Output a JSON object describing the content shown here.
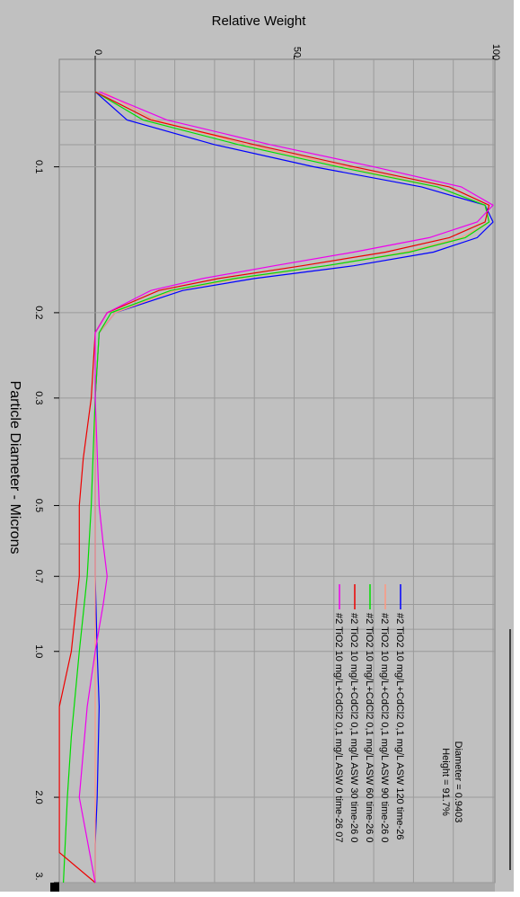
{
  "chart_data": {
    "type": "line",
    "orientation": "rotated-90-clockwise",
    "title": "",
    "xlabel": "Particle Diameter - Microns",
    "ylabel": "Relative Weight",
    "x_scale": "log",
    "xlim": [
      0.06,
      3.0
    ],
    "ylim": [
      0,
      100
    ],
    "grid": true,
    "x_ticks": [
      "0.1",
      "0.2",
      "0.3",
      "0.5",
      "0.7",
      "1.0",
      "2.0",
      "3."
    ],
    "y_ticks": [
      "0",
      "50",
      "100"
    ],
    "legend_position": "lower-right",
    "readout": {
      "diameter": "Diameter = 0.9403",
      "height": "Height = 91.7%"
    },
    "series": [
      {
        "name": "#2 TiO2 10 mg/L+CdCl2 0,1 mg/L ASW 120 time-26",
        "color": "#0000ff",
        "points": [
          [
            0.07,
            0
          ],
          [
            0.08,
            8
          ],
          [
            0.09,
            30
          ],
          [
            0.1,
            55
          ],
          [
            0.11,
            82
          ],
          [
            0.12,
            98
          ],
          [
            0.13,
            100
          ],
          [
            0.14,
            96
          ],
          [
            0.15,
            85
          ],
          [
            0.16,
            65
          ],
          [
            0.17,
            40
          ],
          [
            0.18,
            22
          ],
          [
            0.2,
            5
          ],
          [
            0.22,
            1
          ],
          [
            0.3,
            0
          ],
          [
            0.5,
            0
          ],
          [
            0.7,
            0
          ],
          [
            1.0,
            0.5
          ],
          [
            1.3,
            1
          ],
          [
            2.0,
            0.5
          ],
          [
            2.5,
            0
          ],
          [
            3.0,
            0
          ]
        ]
      },
      {
        "name": "#2 TiO2 10 mg/L+CdCl2 0,1 mg/L ASW 90 time-26 0",
        "color": "#ff9980",
        "points": [
          [
            0.07,
            2
          ],
          [
            0.08,
            15
          ],
          [
            0.09,
            38
          ],
          [
            0.1,
            63
          ],
          [
            0.11,
            86
          ],
          [
            0.12,
            98
          ],
          [
            0.13,
            99
          ],
          [
            0.14,
            92
          ],
          [
            0.15,
            78
          ],
          [
            0.16,
            58
          ],
          [
            0.17,
            36
          ],
          [
            0.18,
            20
          ],
          [
            0.2,
            5
          ],
          [
            0.22,
            1
          ],
          [
            0.3,
            0
          ],
          [
            0.5,
            0
          ],
          [
            0.7,
            0
          ],
          [
            1.0,
            0
          ],
          [
            2.0,
            0
          ],
          [
            3.0,
            0
          ]
        ]
      },
      {
        "name": "#2 TiO2 10 mg/L+CdCl2 0,1 mg/L ASW 60 time-26 0",
        "color": "#00dd00",
        "points": [
          [
            0.07,
            0
          ],
          [
            0.08,
            12
          ],
          [
            0.09,
            36
          ],
          [
            0.1,
            61
          ],
          [
            0.11,
            86
          ],
          [
            0.12,
            98
          ],
          [
            0.13,
            99
          ],
          [
            0.14,
            93
          ],
          [
            0.15,
            79
          ],
          [
            0.16,
            58
          ],
          [
            0.17,
            35
          ],
          [
            0.18,
            19
          ],
          [
            0.2,
            4
          ],
          [
            0.22,
            1
          ],
          [
            0.3,
            0
          ],
          [
            0.5,
            -1
          ],
          [
            0.7,
            -2
          ],
          [
            1.0,
            -4
          ],
          [
            1.5,
            -6
          ],
          [
            2.0,
            -7
          ],
          [
            3.0,
            -8
          ]
        ]
      },
      {
        "name": "#2 TiO2 10 mg/L+CdCl2 0,1 mg/L ASW 30 time-26 0",
        "color": "#ee0000",
        "points": [
          [
            0.07,
            0
          ],
          [
            0.08,
            14
          ],
          [
            0.09,
            40
          ],
          [
            0.1,
            65
          ],
          [
            0.11,
            89
          ],
          [
            0.12,
            99
          ],
          [
            0.13,
            98
          ],
          [
            0.14,
            89
          ],
          [
            0.15,
            73
          ],
          [
            0.16,
            52
          ],
          [
            0.17,
            31
          ],
          [
            0.18,
            16
          ],
          [
            0.2,
            3
          ],
          [
            0.22,
            0
          ],
          [
            0.3,
            -1
          ],
          [
            0.4,
            -3
          ],
          [
            0.5,
            -4
          ],
          [
            0.7,
            -4
          ],
          [
            1.0,
            -6
          ],
          [
            1.3,
            -9
          ],
          [
            2.0,
            -9
          ],
          [
            2.6,
            -9
          ],
          [
            3.0,
            0
          ]
        ]
      },
      {
        "name": "#2 TiO2 10 mg/L+CdCl2 0,1 mg/L ASW 0 time-26 07",
        "color": "#ee00ee",
        "points": [
          [
            0.07,
            1
          ],
          [
            0.08,
            18
          ],
          [
            0.09,
            44
          ],
          [
            0.1,
            70
          ],
          [
            0.11,
            92
          ],
          [
            0.12,
            100
          ],
          [
            0.13,
            96
          ],
          [
            0.14,
            84
          ],
          [
            0.15,
            65
          ],
          [
            0.16,
            45
          ],
          [
            0.17,
            27
          ],
          [
            0.18,
            14
          ],
          [
            0.2,
            3
          ],
          [
            0.22,
            0
          ],
          [
            0.3,
            0
          ],
          [
            0.5,
            1
          ],
          [
            0.6,
            2
          ],
          [
            0.7,
            3
          ],
          [
            0.8,
            2
          ],
          [
            1.0,
            0
          ],
          [
            1.3,
            -2
          ],
          [
            2.0,
            -4
          ],
          [
            3.0,
            0
          ]
        ]
      }
    ]
  }
}
